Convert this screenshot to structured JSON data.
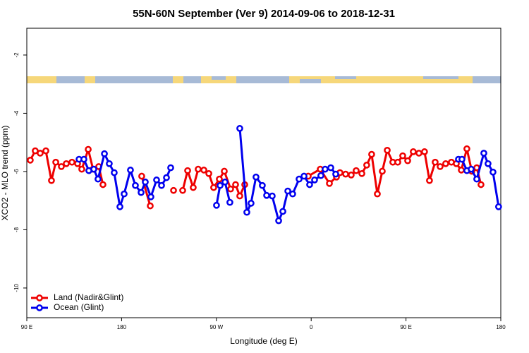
{
  "chart_data": {
    "type": "line",
    "title": "55N-60N September (Ver 9)   2014-09-06 to 2018-12-31",
    "x_label": "Longitude (deg E)",
    "y_label": "XCO2 - MLO trend (ppm)",
    "xlim": [
      90,
      540
    ],
    "xticks": [
      {
        "value": 90,
        "label": "90 E"
      },
      180,
      {
        "value": 270,
        "label": "90 W"
      },
      {
        "value": 360,
        "label": "0"
      },
      {
        "value": 450,
        "label": "90 E"
      },
      {
        "value": 540,
        "label": "180"
      }
    ],
    "ylim": [
      -11.02,
      -1.08
    ],
    "yticks": [
      -10,
      -8,
      -6,
      -4,
      -2
    ],
    "legend": "bottom-left",
    "series": [
      {
        "name": "Land (Nadir&Glint)",
        "color": "#ee0000",
        "x": [
          93.3,
          98.0,
          102.7,
          108.1,
          113.4,
          117.5,
          122.8,
          127.5,
          132.9,
          138.2,
          142.2,
          148.3,
          152.9,
          158.3,
          162.3,
          null,
          199.1,
          207.2,
          null,
          229.3,
          null,
          238.0,
          242.7,
          248.0,
          252.7,
          258.1,
          262.8,
          267.4,
          272.8,
          277.5,
          283.5,
          288.2,
          292.2,
          296.9,
          null,
          357.2,
          368.6,
          377.3,
          384.0,
          387.3,
          392.7,
          398.0,
          402.7,
          408.1,
          412.7,
          417.4,
          422.8,
          427.5,
          432.2,
          437.5,
          442.2,
          446.9,
          451.6,
          456.9,
          462.3,
          467.6,
          472.3,
          477.7,
          482.4,
          487.7,
          493.1,
          497.8,
          502.5,
          507.8,
          512.5,
          517.2,
          521.2
        ],
        "values": [
          -5.61,
          -5.29,
          -5.37,
          -5.29,
          -6.31,
          -5.68,
          -5.83,
          -5.73,
          -5.68,
          -5.73,
          -5.92,
          -5.24,
          -5.92,
          -5.83,
          -6.45,
          null,
          -6.16,
          -7.18,
          null,
          -6.65,
          null,
          -6.65,
          -5.97,
          -6.55,
          -5.92,
          -5.95,
          -6.07,
          -6.55,
          -6.26,
          -5.99,
          -6.6,
          -6.45,
          -6.84,
          -6.45,
          null,
          -6.16,
          -5.92,
          -6.41,
          -6.19,
          -6.04,
          -6.09,
          -6.12,
          -5.97,
          -6.07,
          -5.78,
          -5.41,
          -6.77,
          -5.99,
          -5.27,
          -5.68,
          -5.68,
          -5.46,
          -5.63,
          -5.32,
          -5.37,
          -5.32,
          -6.31,
          -5.68,
          -5.83,
          -5.73,
          -5.68,
          -5.73,
          -5.95,
          -5.22,
          -5.99,
          -5.87,
          -6.45
        ]
      },
      {
        "name": "Ocean (Glint)",
        "color": "#0000ee",
        "x": [
          139.6,
          144.2,
          148.9,
          153.6,
          157.6,
          163.7,
          168.3,
          173.0,
          178.4,
          182.4,
          188.4,
          193.1,
          198.5,
          202.5,
          207.8,
          213.2,
          217.9,
          222.6,
          226.6,
          null,
          270.1,
          273.5,
          278.2,
          282.8,
          null,
          292.2,
          298.9,
          302.9,
          307.6,
          313.6,
          317.7,
          323.0,
          329.1,
          333.1,
          337.8,
          342.4,
          348.5,
          353.2,
          358.5,
          363.2,
          369.2,
          373.2,
          378.6,
          383.3,
          null,
          499.8,
          503.1,
          507.8,
          511.9,
          517.2,
          523.9,
          527.9,
          532.6,
          537.9
        ],
        "values": [
          -5.58,
          -5.58,
          -5.97,
          -5.92,
          -6.26,
          -5.39,
          -5.73,
          -6.04,
          -7.21,
          -6.77,
          -5.95,
          -6.48,
          -6.72,
          -6.36,
          -6.87,
          -6.29,
          -6.48,
          -6.21,
          -5.87,
          null,
          -7.16,
          -6.48,
          -6.36,
          -7.06,
          null,
          -4.52,
          -7.4,
          -7.09,
          -6.19,
          -6.48,
          -6.82,
          -6.84,
          -7.69,
          -7.37,
          -6.67,
          -6.77,
          -6.26,
          -6.16,
          -6.45,
          -6.29,
          -6.14,
          -5.92,
          -5.87,
          -6.09,
          null,
          -5.58,
          -5.58,
          -5.97,
          -5.92,
          -6.26,
          -5.37,
          -5.73,
          -6.02,
          -7.21
        ]
      }
    ]
  }
}
